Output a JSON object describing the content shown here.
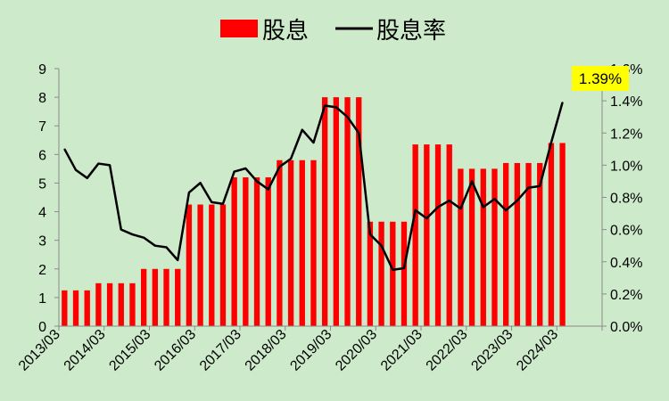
{
  "chart_data": {
    "type": "bar",
    "legend": {
      "position": "top-center",
      "bar_label": "股息",
      "line_label": "股息率"
    },
    "colors": {
      "bar": "#ff0000",
      "line": "#000000",
      "background": "#cdeacb",
      "callout": "#ffff00"
    },
    "y_left": {
      "min": 0,
      "max": 9,
      "ticks": [
        "0",
        "1",
        "2",
        "3",
        "4",
        "5",
        "6",
        "7",
        "8",
        "9"
      ]
    },
    "y_right": {
      "min": 0,
      "max": 1.6,
      "ticks": [
        "0.0%",
        "0.2%",
        "0.4%",
        "0.6%",
        "0.8%",
        "1.0%",
        "1.2%",
        "1.4%",
        "1.6%"
      ]
    },
    "x_tick_labels": [
      "2013/03",
      "2014/03",
      "2015/03",
      "2016/03",
      "2017/03",
      "2018/03",
      "2019/03",
      "2020/03",
      "2021/03",
      "2022/03",
      "2023/03",
      "2024/03"
    ],
    "periods_per_year": 4,
    "series": [
      {
        "name": "股息",
        "kind": "bar",
        "axis": "left",
        "values": [
          1.25,
          1.25,
          1.25,
          1.5,
          1.5,
          1.5,
          1.5,
          2.0,
          2.0,
          2.0,
          2.0,
          4.25,
          4.25,
          4.25,
          4.25,
          5.2,
          5.2,
          5.2,
          5.2,
          5.8,
          5.8,
          5.8,
          5.8,
          8.0,
          8.0,
          8.0,
          8.0,
          3.65,
          3.65,
          3.65,
          3.65,
          6.35,
          6.35,
          6.35,
          6.35,
          5.5,
          5.5,
          5.5,
          5.5,
          5.7,
          5.7,
          5.7,
          5.7,
          6.4,
          6.4
        ]
      },
      {
        "name": "股息率",
        "kind": "line",
        "axis": "right",
        "values": [
          1.1,
          0.97,
          0.92,
          1.01,
          1.0,
          0.6,
          0.57,
          0.55,
          0.5,
          0.49,
          0.41,
          0.83,
          0.89,
          0.77,
          0.76,
          0.96,
          0.98,
          0.9,
          0.85,
          0.99,
          1.04,
          1.22,
          1.14,
          1.37,
          1.36,
          1.3,
          1.2,
          0.57,
          0.5,
          0.35,
          0.36,
          0.72,
          0.67,
          0.74,
          0.78,
          0.73,
          0.9,
          0.74,
          0.79,
          0.72,
          0.78,
          0.86,
          0.87,
          1.14,
          1.39
        ]
      }
    ],
    "annotation": {
      "text": "1.39%"
    }
  }
}
